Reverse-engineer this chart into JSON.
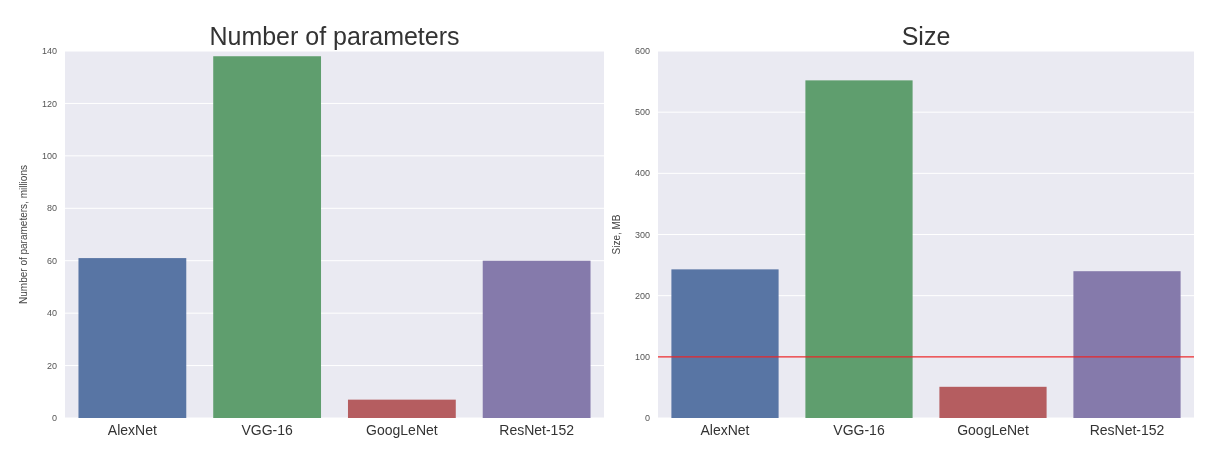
{
  "chart_data": [
    {
      "type": "bar",
      "title": "Number of parameters",
      "ylabel": "Number of parameters, millions",
      "categories": [
        "AlexNet",
        "VGG-16",
        "GoogLeNet",
        "ResNet-152"
      ],
      "values": [
        61,
        138,
        7,
        60
      ],
      "colors": [
        "#5875a4",
        "#5f9e6e",
        "#b55d60",
        "#857aab"
      ],
      "ylim": [
        0,
        140
      ],
      "yticks": [
        0,
        20,
        40,
        60,
        80,
        100,
        120,
        140
      ],
      "grid": "y"
    },
    {
      "type": "bar",
      "title": "Size",
      "ylabel": "Size, MB",
      "categories": [
        "AlexNet",
        "VGG-16",
        "GoogLeNet",
        "ResNet-152"
      ],
      "values": [
        243,
        552,
        51,
        240
      ],
      "colors": [
        "#5875a4",
        "#5f9e6e",
        "#b55d60",
        "#857aab"
      ],
      "ylim": [
        0,
        600
      ],
      "yticks": [
        0,
        100,
        200,
        300,
        400,
        500,
        600
      ],
      "grid": "y",
      "ref_lines": [
        {
          "axis": "y",
          "value": 100,
          "color": "#e8272a"
        }
      ]
    }
  ]
}
